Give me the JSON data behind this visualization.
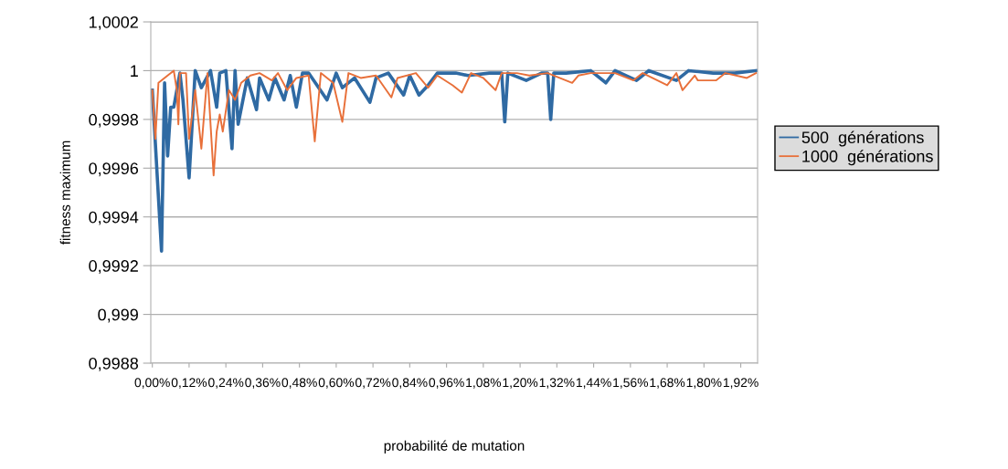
{
  "chart_data": {
    "type": "line",
    "xlabel": "probabilité de mutation",
    "ylabel": "fitness maximum",
    "xlim": [
      -0.005,
      1.975
    ],
    "xticks": [
      {
        "value": 0,
        "label": "0,00%"
      },
      {
        "value": 0.12,
        "label": "0,12%"
      },
      {
        "value": 0.24,
        "label": "0,24%"
      },
      {
        "value": 0.36,
        "label": "0,36%"
      },
      {
        "value": 0.48,
        "label": "0,48%"
      },
      {
        "value": 0.6,
        "label": "0,60%"
      },
      {
        "value": 0.72,
        "label": "0,72%"
      },
      {
        "value": 0.84,
        "label": "0,84%"
      },
      {
        "value": 0.96,
        "label": "0,96%"
      },
      {
        "value": 1.08,
        "label": "1,08%"
      },
      {
        "value": 1.2,
        "label": "1,20%"
      },
      {
        "value": 1.32,
        "label": "1,32%"
      },
      {
        "value": 1.44,
        "label": "1,44%"
      },
      {
        "value": 1.56,
        "label": "1,56%"
      },
      {
        "value": 1.68,
        "label": "1,68%"
      },
      {
        "value": 1.8,
        "label": "1,80%"
      },
      {
        "value": 1.92,
        "label": "1,92%"
      }
    ],
    "ylim": [
      0.9988,
      1.0002
    ],
    "yticks": [
      {
        "value": 0.9988,
        "label": "0,9988"
      },
      {
        "value": 0.999,
        "label": "0,999"
      },
      {
        "value": 0.9992,
        "label": "0,9992"
      },
      {
        "value": 0.9994,
        "label": "0,9994"
      },
      {
        "value": 0.9996,
        "label": "0,9996"
      },
      {
        "value": 0.9998,
        "label": "0,9998"
      },
      {
        "value": 1,
        "label": "1"
      },
      {
        "value": 1.0002,
        "label": "1,0002"
      }
    ],
    "grid": "y",
    "legend": "right",
    "marker": "none",
    "line_style": "solid",
    "series": [
      {
        "name": "500  générations",
        "color": "#2f6aa3",
        "x": [
          0.0,
          0.03,
          0.04,
          0.05,
          0.06,
          0.07,
          0.09,
          0.1,
          0.12,
          0.14,
          0.16,
          0.19,
          0.21,
          0.22,
          0.24,
          0.26,
          0.27,
          0.28,
          0.31,
          0.34,
          0.35,
          0.38,
          0.4,
          0.43,
          0.45,
          0.47,
          0.49,
          0.51,
          0.57,
          0.6,
          0.62,
          0.66,
          0.71,
          0.73,
          0.77,
          0.82,
          0.84,
          0.87,
          0.9,
          0.93,
          0.99,
          1.03,
          1.1,
          1.14,
          1.15,
          1.16,
          1.22,
          1.27,
          1.29,
          1.3,
          1.31,
          1.35,
          1.43,
          1.48,
          1.51,
          1.58,
          1.62,
          1.71,
          1.75,
          1.83,
          1.9,
          1.97
        ],
        "values": [
          0.99992,
          0.99926,
          0.99995,
          0.99965,
          0.99985,
          0.99985,
          0.99999,
          0.99988,
          0.99956,
          1.0,
          0.99993,
          1.0,
          0.99985,
          0.99999,
          1.0,
          0.99968,
          1.0,
          0.99978,
          0.99997,
          0.99984,
          0.99997,
          0.99988,
          0.99997,
          0.99988,
          0.99998,
          0.99985,
          0.99999,
          0.99999,
          0.99988,
          0.99999,
          0.99993,
          0.99997,
          0.99987,
          0.99997,
          0.99999,
          0.9999,
          0.99998,
          0.9999,
          0.99994,
          0.99999,
          0.99999,
          0.99998,
          0.99999,
          0.99999,
          0.99979,
          0.99999,
          0.99996,
          0.99999,
          0.99999,
          0.9998,
          0.99999,
          0.99999,
          1.0,
          0.99995,
          1.0,
          0.99996,
          1.0,
          0.99996,
          1.0,
          0.99999,
          0.99999,
          1.0
        ]
      },
      {
        "name": "1000  générations",
        "color": "#e8703a",
        "x": [
          0.0,
          0.01,
          0.02,
          0.05,
          0.07,
          0.08,
          0.085,
          0.09,
          0.11,
          0.12,
          0.14,
          0.16,
          0.18,
          0.2,
          0.21,
          0.22,
          0.23,
          0.25,
          0.27,
          0.29,
          0.32,
          0.35,
          0.39,
          0.41,
          0.44,
          0.47,
          0.51,
          0.53,
          0.55,
          0.59,
          0.62,
          0.64,
          0.68,
          0.73,
          0.78,
          0.8,
          0.86,
          0.9,
          0.93,
          0.98,
          1.01,
          1.04,
          1.08,
          1.12,
          1.14,
          1.19,
          1.23,
          1.29,
          1.37,
          1.39,
          1.43,
          1.51,
          1.57,
          1.6,
          1.68,
          1.71,
          1.73,
          1.77,
          1.78,
          1.84,
          1.87,
          1.94,
          1.97
        ],
        "values": [
          0.99992,
          0.99972,
          0.99995,
          0.99998,
          1.0,
          0.99992,
          0.99978,
          0.99999,
          0.99999,
          0.99972,
          0.99992,
          0.99968,
          0.99999,
          0.99957,
          0.99975,
          0.99982,
          0.99975,
          0.99992,
          0.99988,
          0.99995,
          0.99998,
          0.99999,
          0.99996,
          0.99999,
          0.99992,
          0.99997,
          0.99998,
          0.99971,
          0.99999,
          0.99995,
          0.99979,
          0.99999,
          0.99997,
          0.99998,
          0.99989,
          0.99997,
          0.99999,
          0.99993,
          0.99998,
          0.99994,
          0.99991,
          0.99999,
          0.99997,
          0.99992,
          0.99999,
          0.99999,
          0.99998,
          0.99999,
          0.99995,
          0.99998,
          0.99999,
          0.99999,
          0.99996,
          0.99999,
          0.99994,
          0.99999,
          0.99992,
          0.99998,
          0.99996,
          0.99996,
          0.99999,
          0.99997,
          0.99999
        ]
      }
    ]
  }
}
